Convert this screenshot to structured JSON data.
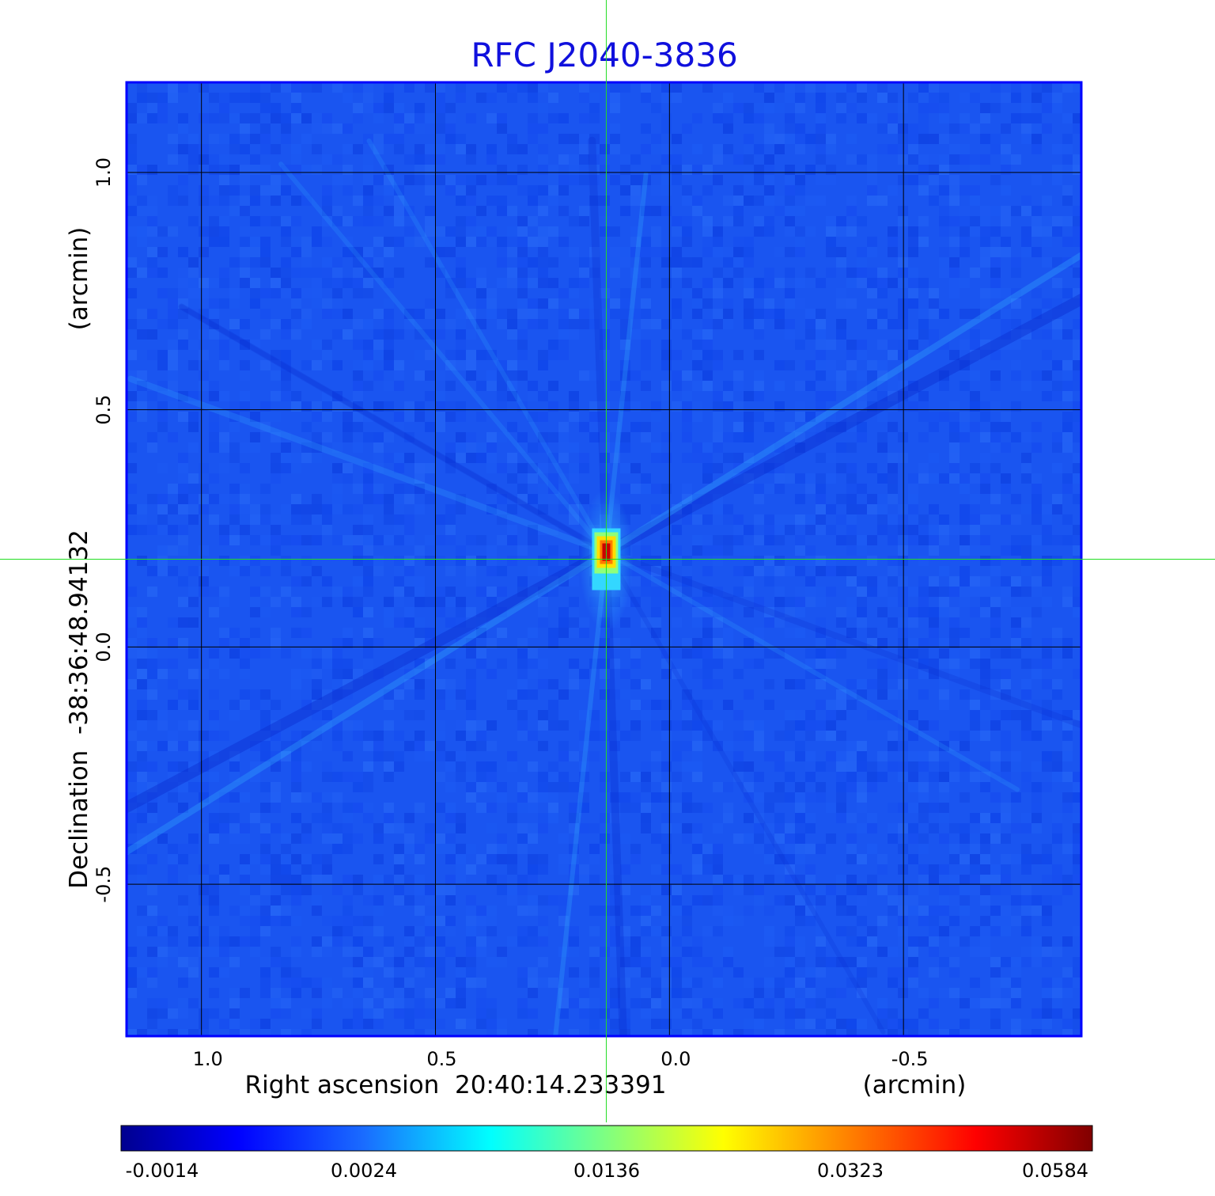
{
  "chart_data": {
    "type": "heatmap",
    "title": "RFC J2040-3836",
    "xlabel": "Right ascension  20:40:14.233391",
    "xunit": "(arcmin)",
    "ylabel": "Declination  -38:36:48.94132",
    "yunit": "(arcmin)",
    "xlim": [
      1.16,
      -0.88
    ],
    "ylim": [
      -0.82,
      1.19
    ],
    "x_ticks": [
      1.0,
      0.5,
      0.0,
      -0.5
    ],
    "x_tick_labels": [
      "1.0",
      "0.5",
      "0.0",
      "-0.5"
    ],
    "y_ticks": [
      1.0,
      0.5,
      0.0,
      -0.5
    ],
    "y_tick_labels": [
      "1.0",
      "0.5",
      "0.0",
      "-0.5"
    ],
    "grid": true,
    "crosshair": {
      "x": 0.135,
      "y": 0.185
    },
    "source_peak": {
      "x": 0.135,
      "y": 0.2,
      "value": 0.0584
    },
    "colorbar": {
      "colormap": "jet",
      "ticks": [
        -0.0014,
        0.0024,
        0.0136,
        0.0323,
        0.0584
      ],
      "tick_labels": [
        "-0.0014",
        "0.0024",
        "0.0136",
        "0.0323",
        "0.0584"
      ]
    },
    "colors": {
      "title": "#1010dd",
      "frame": "#0000ff",
      "grid": "#000000",
      "crosshair": "#22dd22",
      "background_map": "#1a55f0"
    }
  }
}
